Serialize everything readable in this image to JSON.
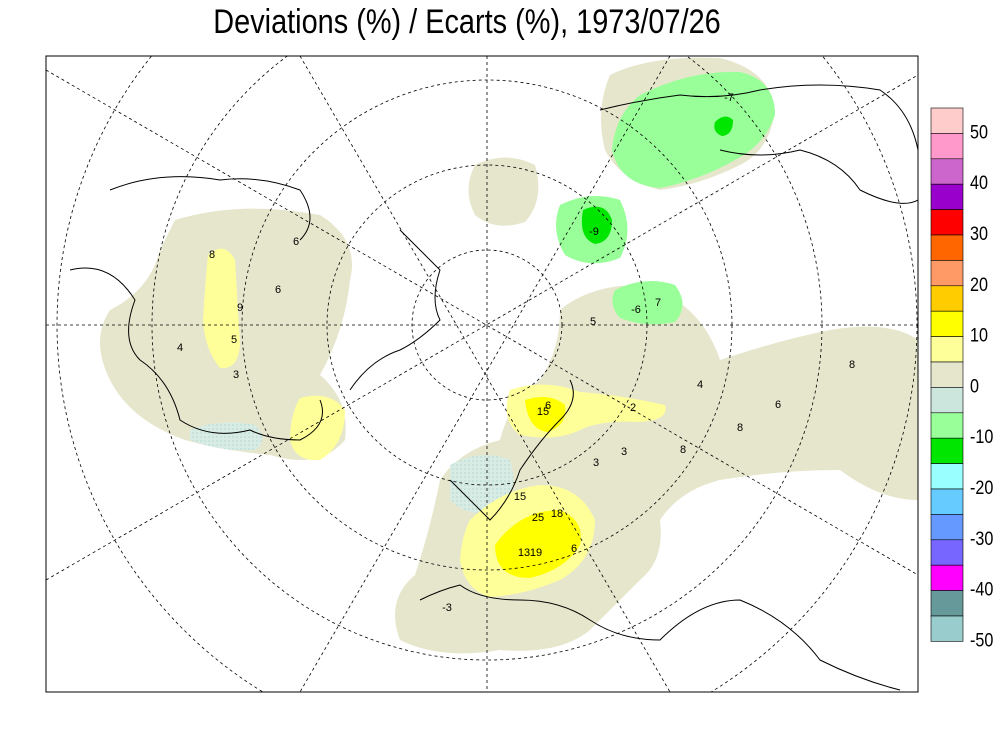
{
  "title": "Deviations (%) / Ecarts (%), 1973/07/26",
  "legend": {
    "colors": [
      "#ffcccc",
      "#ff99cc",
      "#cc66cc",
      "#9900cc",
      "#ff0000",
      "#ff6600",
      "#ff9966",
      "#ffcc00",
      "#ffff00",
      "#ffff99",
      "#e6e6cc",
      "#cce6dd",
      "#99ff99",
      "#00e600",
      "#99ffff",
      "#66ccff",
      "#6699ff",
      "#7766ff",
      "#ff00ff",
      "#669999",
      "#99cccc"
    ],
    "labels": [
      50,
      40,
      30,
      20,
      10,
      0,
      -10,
      -20,
      -30,
      -40,
      -50
    ]
  },
  "contour_labels": [
    8,
    6,
    4,
    5,
    3,
    6,
    9,
    7,
    5,
    2,
    3,
    3,
    8,
    8,
    6,
    4,
    15,
    15,
    6,
    18,
    19,
    13,
    25,
    6,
    -3,
    -9,
    -7,
    -6,
    8
  ]
}
